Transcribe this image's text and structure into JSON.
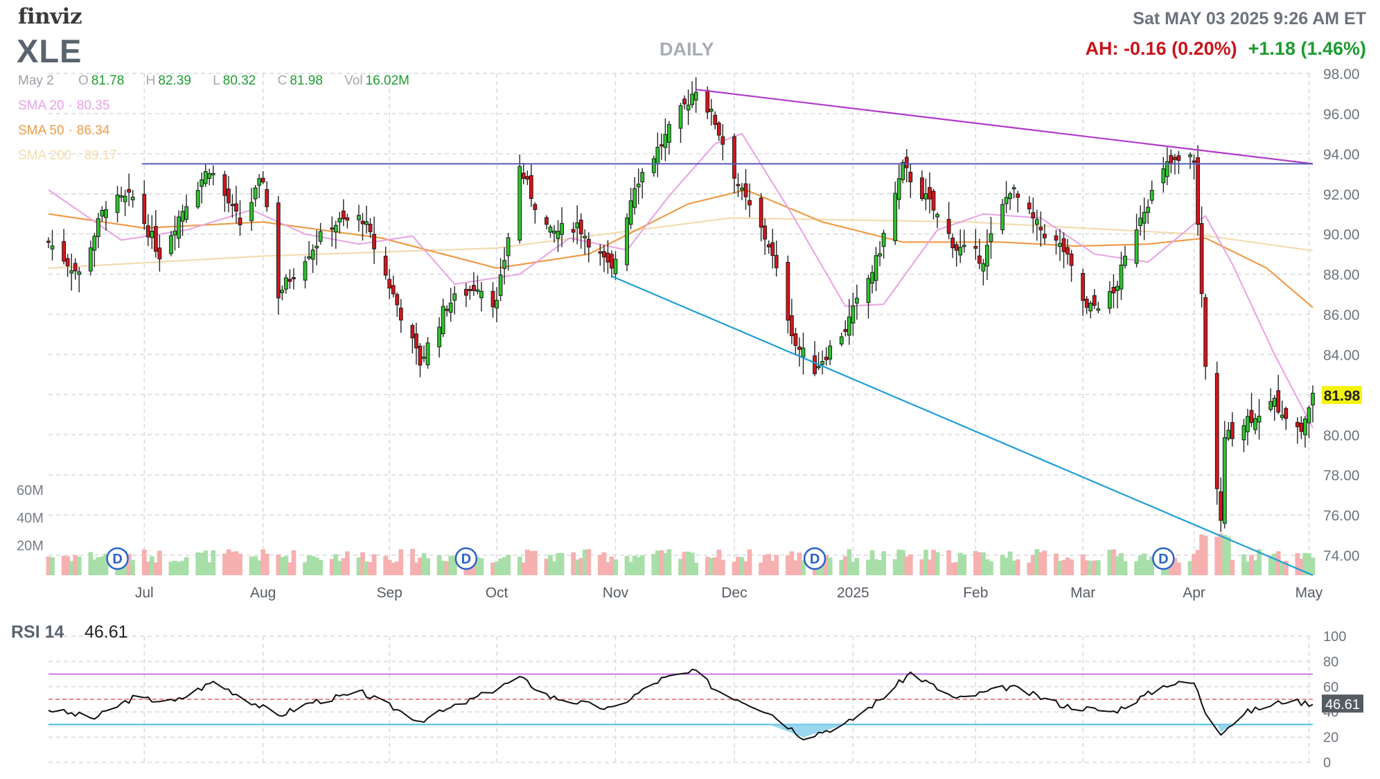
{
  "header": {
    "brand": "finviz",
    "ticker": "XLE",
    "period": "DAILY",
    "datetime": "Sat MAY 03 2025 9:26 AM ET",
    "after_hours": "AH: -0.16 (0.20%)",
    "change": "+1.18 (1.46%)"
  },
  "ohlc": {
    "date": "May 2",
    "open_label": "O",
    "open": "81.78",
    "high_label": "H",
    "high": "82.39",
    "low_label": "L",
    "low": "80.32",
    "close_label": "C",
    "close": "81.98",
    "vol_label": "Vol",
    "volume": "16.02M"
  },
  "sma": {
    "sma20_label": "SMA 20",
    "sma20": "80.35",
    "sma50_label": "SMA 50",
    "sma50": "86.34",
    "sma200_label": "SMA 200",
    "sma200": "89.17",
    "dot": "·"
  },
  "rsi": {
    "label": "RSI 14",
    "value": "46.61"
  },
  "colors": {
    "up": "#2cc52c",
    "down": "#d7141b",
    "sma20": "#e8a1e5",
    "sma50": "#ef9b47",
    "sma200": "#f2dcae",
    "vol_up": "#a8dea8",
    "vol_down": "#f6b0b0",
    "trend_upper": "#b13ac8",
    "trend_lower": "#1c9ed8",
    "horizontal": "#5659b8",
    "rsi_upper": "#cc77e0",
    "rsi_lower": "#47bde0",
    "rsi_mid": "#e85d5d",
    "grid": "#d7d9dd"
  },
  "chart_data": {
    "type": "candlestick",
    "y_ticks": [
      "98.00",
      "96.00",
      "94.00",
      "92.00",
      "90.00",
      "88.00",
      "86.00",
      "84.00",
      "82.00",
      "80.00",
      "78.00",
      "76.00",
      "74.00"
    ],
    "y_range": [
      73,
      98
    ],
    "x_labels": [
      "Jul",
      "Aug",
      "Sep",
      "Oct",
      "Nov",
      "Dec",
      "2025",
      "Feb",
      "Mar",
      "Apr",
      "May"
    ],
    "x_range": [
      "2024-06-06",
      "2025-05-02"
    ],
    "last_price": "81.98",
    "volume_ticks": [
      "60M",
      "40M",
      "20M"
    ],
    "dividend_marker": "D",
    "dividend_dates": [
      "2024-06-24",
      "2024-09-23",
      "2024-12-23",
      "2025-03-24"
    ],
    "trendlines": [
      {
        "kind": "upper",
        "from": [
          "2024-11-22",
          97.2
        ],
        "to": [
          "2025-05-02",
          93.5
        ]
      },
      {
        "kind": "lower",
        "from": [
          "2024-10-31",
          87.9
        ],
        "to": [
          "2025-05-02",
          73.0
        ]
      },
      {
        "kind": "horizontal",
        "value": 93.5
      }
    ],
    "rsi_ticks": [
      "100",
      "80",
      "60",
      "40",
      "20",
      "0"
    ],
    "rsi_levels": {
      "overbought": 70,
      "mid": 50,
      "oversold": 30
    },
    "rsi_current": "46.61",
    "monthly_path": [
      [
        "2024-06-06",
        89.6
      ],
      [
        "2024-06-14",
        88.0
      ],
      [
        "2024-06-21",
        91.5
      ],
      [
        "2024-06-28",
        91.8
      ],
      [
        "2024-07-05",
        89.0
      ],
      [
        "2024-07-12",
        91.6
      ],
      [
        "2024-07-18",
        93.3
      ],
      [
        "2024-07-26",
        90.5
      ],
      [
        "2024-08-01",
        92.8
      ],
      [
        "2024-08-05",
        87.0
      ],
      [
        "2024-08-12",
        88.9
      ],
      [
        "2024-08-19",
        90.5
      ],
      [
        "2024-08-27",
        90.8
      ],
      [
        "2024-09-06",
        86.0
      ],
      [
        "2024-09-11",
        83.6
      ],
      [
        "2024-09-18",
        86.5
      ],
      [
        "2024-09-26",
        87.5
      ],
      [
        "2024-10-01",
        86.5
      ],
      [
        "2024-10-07",
        93.3
      ],
      [
        "2024-10-11",
        91.5
      ],
      [
        "2024-10-15",
        90.0
      ],
      [
        "2024-10-22",
        90.5
      ],
      [
        "2024-10-31",
        88.1
      ],
      [
        "2024-11-06",
        92.5
      ],
      [
        "2024-11-13",
        94.5
      ],
      [
        "2024-11-22",
        97.3
      ],
      [
        "2024-11-27",
        95.6
      ],
      [
        "2024-12-04",
        92.0
      ],
      [
        "2024-12-11",
        89.5
      ],
      [
        "2024-12-18",
        84.5
      ],
      [
        "2024-12-23",
        83.3
      ],
      [
        "2024-12-31",
        85.3
      ],
      [
        "2025-01-08",
        88.6
      ],
      [
        "2025-01-15",
        93.3
      ],
      [
        "2025-01-22",
        91.5
      ],
      [
        "2025-01-29",
        89.3
      ],
      [
        "2025-02-05",
        88.8
      ],
      [
        "2025-02-12",
        92.3
      ],
      [
        "2025-02-19",
        90.4
      ],
      [
        "2025-02-26",
        89.2
      ],
      [
        "2025-03-04",
        86.2
      ],
      [
        "2025-03-11",
        87.0
      ],
      [
        "2025-03-18",
        91.0
      ],
      [
        "2025-03-25",
        93.4
      ],
      [
        "2025-04-01",
        93.8
      ],
      [
        "2025-04-03",
        87.0
      ],
      [
        "2025-04-04",
        83.3
      ],
      [
        "2025-04-08",
        75.5
      ],
      [
        "2025-04-09",
        79.8
      ],
      [
        "2025-04-15",
        80.8
      ],
      [
        "2025-04-22",
        81.6
      ],
      [
        "2025-04-29",
        80.2
      ],
      [
        "2025-05-02",
        81.98
      ]
    ],
    "sma20_path": [
      [
        "2024-06-06",
        92.2
      ],
      [
        "2024-06-25",
        89.7
      ],
      [
        "2024-07-12",
        90.2
      ],
      [
        "2024-07-29",
        91.2
      ],
      [
        "2024-08-12",
        90.0
      ],
      [
        "2024-08-26",
        89.5
      ],
      [
        "2024-09-09",
        89.9
      ],
      [
        "2024-09-20",
        87.5
      ],
      [
        "2024-10-07",
        88.0
      ],
      [
        "2024-10-20",
        89.8
      ],
      [
        "2024-11-04",
        89.2
      ],
      [
        "2024-11-15",
        91.9
      ],
      [
        "2024-11-27",
        94.5
      ],
      [
        "2024-12-04",
        95.0
      ],
      [
        "2024-12-17",
        91.0
      ],
      [
        "2024-12-31",
        86.4
      ],
      [
        "2025-01-10",
        86.5
      ],
      [
        "2025-01-24",
        90.2
      ],
      [
        "2025-02-05",
        91.0
      ],
      [
        "2025-02-20",
        90.8
      ],
      [
        "2025-03-06",
        89.0
      ],
      [
        "2025-03-20",
        88.6
      ],
      [
        "2025-04-01",
        90.5
      ],
      [
        "2025-04-04",
        90.9
      ],
      [
        "2025-04-11",
        88.5
      ],
      [
        "2025-04-22",
        84.0
      ],
      [
        "2025-05-02",
        80.35
      ]
    ],
    "sma50_path": [
      [
        "2024-06-06",
        91.0
      ],
      [
        "2024-07-01",
        90.3
      ],
      [
        "2024-08-01",
        90.6
      ],
      [
        "2024-09-01",
        89.8
      ],
      [
        "2024-10-01",
        88.3
      ],
      [
        "2024-10-25",
        89.0
      ],
      [
        "2024-11-20",
        91.5
      ],
      [
        "2024-12-05",
        92.2
      ],
      [
        "2024-12-25",
        90.6
      ],
      [
        "2025-01-15",
        89.6
      ],
      [
        "2025-02-10",
        89.6
      ],
      [
        "2025-03-01",
        89.4
      ],
      [
        "2025-03-20",
        89.5
      ],
      [
        "2025-04-04",
        89.8
      ],
      [
        "2025-04-20",
        88.3
      ],
      [
        "2025-05-02",
        86.34
      ]
    ],
    "sma200_path": [
      [
        "2024-06-06",
        88.3
      ],
      [
        "2024-08-01",
        88.9
      ],
      [
        "2024-10-01",
        89.3
      ],
      [
        "2024-12-01",
        90.8
      ],
      [
        "2025-02-01",
        90.6
      ],
      [
        "2025-04-01",
        90.0
      ],
      [
        "2025-05-02",
        89.17
      ]
    ],
    "rsi_path": [
      [
        "2024-06-06",
        42
      ],
      [
        "2024-06-18",
        35
      ],
      [
        "2024-06-28",
        51
      ],
      [
        "2024-07-09",
        48
      ],
      [
        "2024-07-19",
        64
      ],
      [
        "2024-08-05",
        37
      ],
      [
        "2024-08-14",
        48
      ],
      [
        "2024-08-27",
        55
      ],
      [
        "2024-09-11",
        33
      ],
      [
        "2024-09-24",
        49
      ],
      [
        "2024-10-07",
        67
      ],
      [
        "2024-10-15",
        52
      ],
      [
        "2024-10-31",
        42
      ],
      [
        "2024-11-13",
        66
      ],
      [
        "2024-11-22",
        72
      ],
      [
        "2024-11-27",
        58
      ],
      [
        "2024-12-11",
        40
      ],
      [
        "2024-12-20",
        20
      ],
      [
        "2024-12-31",
        30
      ],
      [
        "2025-01-10",
        52
      ],
      [
        "2025-01-17",
        71
      ],
      [
        "2025-01-29",
        50
      ],
      [
        "2025-02-12",
        60
      ],
      [
        "2025-02-26",
        45
      ],
      [
        "2025-03-11",
        40
      ],
      [
        "2025-03-25",
        62
      ],
      [
        "2025-04-01",
        63
      ],
      [
        "2025-04-04",
        40
      ],
      [
        "2025-04-08",
        24
      ],
      [
        "2025-04-15",
        40
      ],
      [
        "2025-04-25",
        49
      ],
      [
        "2025-05-02",
        46.61
      ]
    ]
  }
}
